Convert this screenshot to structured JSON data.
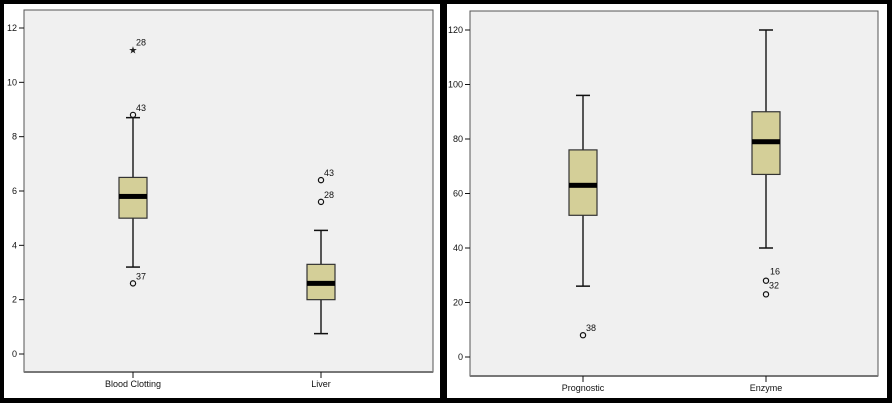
{
  "chart_data": [
    {
      "type": "boxplot",
      "title": "",
      "xlabel": "",
      "ylabel": "",
      "ylim": [
        -0.7,
        12.6
      ],
      "yticks": [
        0,
        2,
        4,
        6,
        8,
        10,
        12
      ],
      "grid": false,
      "categories": [
        "Blood Clotting",
        "Liver"
      ],
      "boxes": [
        {
          "name": "Blood Clotting",
          "whisker_low": 3.2,
          "q1": 5.0,
          "median": 5.8,
          "q3": 6.5,
          "whisker_high": 8.7,
          "outliers": [
            {
              "value": 8.8,
              "label": "43",
              "marker": "circle"
            },
            {
              "value": 2.6,
              "label": "37",
              "marker": "circle"
            },
            {
              "value": 11.2,
              "label": "28",
              "marker": "star"
            }
          ]
        },
        {
          "name": "Liver",
          "whisker_low": 0.75,
          "q1": 2.0,
          "median": 2.6,
          "q3": 3.3,
          "whisker_high": 4.55,
          "outliers": [
            {
              "value": 6.4,
              "label": "43",
              "marker": "circle"
            },
            {
              "value": 5.6,
              "label": "28",
              "marker": "circle"
            }
          ]
        }
      ]
    },
    {
      "type": "boxplot",
      "title": "",
      "xlabel": "",
      "ylabel": "",
      "ylim": [
        -7,
        127
      ],
      "yticks": [
        0,
        20,
        40,
        60,
        80,
        100,
        120
      ],
      "grid": false,
      "categories": [
        "Prognostic",
        "Enzyme"
      ],
      "boxes": [
        {
          "name": "Prognostic",
          "whisker_low": 26,
          "q1": 52,
          "median": 63,
          "q3": 76,
          "whisker_high": 96,
          "outliers": [
            {
              "value": 8,
              "label": "38",
              "marker": "circle"
            }
          ]
        },
        {
          "name": "Enzyme",
          "whisker_low": 40,
          "q1": 67,
          "median": 79,
          "q3": 90,
          "whisker_high": 120,
          "outliers": [
            {
              "value": 28,
              "label": "16",
              "marker": "circle"
            },
            {
              "value": 23,
              "label": "32",
              "marker": "circle"
            }
          ]
        }
      ]
    }
  ],
  "colors": {
    "box_fill": "#d4cf98",
    "plot_bg": "#f0f0f0",
    "border": "#000000"
  }
}
